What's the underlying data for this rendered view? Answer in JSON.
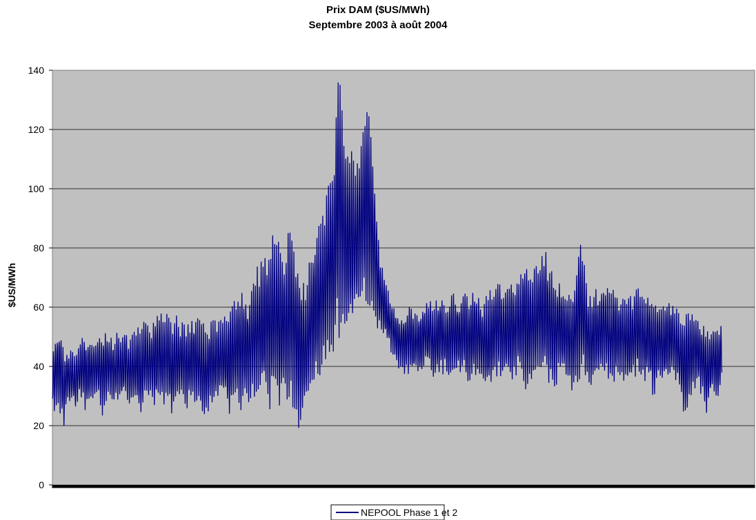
{
  "chart_data": {
    "type": "line",
    "title": "Prix DAM ($US/MWh)",
    "subtitle": "Septembre 2003 à août 2004",
    "xlabel": "",
    "ylabel": "$US/MWh",
    "ylim": [
      0,
      140
    ],
    "yticks": [
      "0",
      "20",
      "40",
      "60",
      "80",
      "100",
      "120",
      "140"
    ],
    "grid": true,
    "legend": "bottom-center",
    "plot_background": "#c0c0c0",
    "series": [
      {
        "name": "NEPOOL Phase 1 et 2",
        "color": "#000080",
        "x_days": [
          0,
          2,
          4,
          6,
          8,
          10,
          12,
          14,
          16,
          18,
          20,
          22,
          24,
          26,
          28,
          30,
          32,
          34,
          36,
          38,
          40,
          42,
          44,
          46,
          48,
          50,
          52,
          54,
          56,
          58,
          60,
          62,
          64,
          66,
          68,
          70,
          72,
          74,
          76,
          78,
          80,
          82,
          84,
          86,
          88,
          90,
          92,
          94,
          96,
          98,
          100,
          102,
          104,
          106,
          108,
          110,
          112,
          114,
          116,
          118,
          120,
          122,
          124,
          126,
          128,
          130,
          132,
          134,
          136,
          138,
          140,
          142,
          144,
          146,
          148,
          150,
          152,
          154,
          156,
          158,
          160,
          162,
          164,
          166,
          168,
          170,
          172,
          174,
          176,
          178,
          180,
          182,
          184,
          186,
          188,
          190,
          192,
          194,
          196,
          198,
          200,
          202,
          204,
          206,
          208,
          210,
          212,
          214,
          216,
          218,
          220,
          222,
          224,
          226,
          228,
          230,
          232,
          234,
          236,
          238,
          240,
          242,
          244,
          246,
          248,
          250,
          252,
          254,
          256,
          258,
          260,
          262,
          264,
          266,
          268,
          270,
          272,
          274,
          276,
          278,
          280,
          282,
          284,
          286,
          288,
          290,
          292,
          294,
          296,
          298,
          300,
          302,
          304,
          306,
          308,
          310,
          312,
          314,
          316,
          318,
          320,
          322,
          324,
          326,
          328,
          330,
          332,
          334,
          336,
          338,
          340,
          342,
          344,
          346,
          348,
          350,
          352,
          354,
          356,
          358,
          360,
          362,
          364
        ],
        "daily_low": [
          24,
          26,
          25,
          20,
          28,
          27,
          25,
          30,
          27,
          26,
          28,
          29,
          30,
          24,
          28,
          31,
          27,
          29,
          28,
          30,
          26,
          29,
          27,
          23,
          30,
          28,
          29,
          27,
          30,
          26,
          28,
          22,
          27,
          30,
          28,
          25,
          29,
          27,
          28,
          20,
          25,
          27,
          26,
          29,
          30,
          28,
          24,
          27,
          25,
          26,
          30,
          27,
          31,
          29,
          28,
          30,
          26,
          27,
          30,
          25,
          28,
          26,
          29,
          24,
          18,
          22,
          26,
          30,
          33,
          35,
          38,
          42,
          44,
          45,
          47,
          48,
          50,
          52,
          55,
          56,
          60,
          63,
          60,
          58,
          55,
          52,
          50,
          48,
          45,
          42,
          40,
          38,
          37,
          38,
          36,
          39,
          37,
          40,
          38,
          36,
          37,
          38,
          39,
          35,
          37,
          38,
          36,
          37,
          34,
          36,
          37,
          38,
          35,
          33,
          34,
          36,
          37,
          35,
          36,
          34,
          36,
          38,
          35,
          32,
          34,
          36,
          38,
          37,
          35,
          34,
          32,
          35,
          36,
          37,
          34,
          32,
          35,
          36,
          37,
          35,
          33,
          36,
          37,
          36,
          38,
          35,
          34,
          36,
          37,
          35,
          33,
          36,
          37,
          35,
          34,
          36,
          30,
          33,
          35,
          34,
          36,
          37,
          35,
          30,
          25,
          22,
          28,
          32,
          34,
          30,
          21,
          27,
          30,
          28,
          36
        ],
        "daily_high": [
          46,
          50,
          55,
          44,
          47,
          46,
          45,
          48,
          52,
          50,
          49,
          47,
          50,
          51,
          52,
          49,
          50,
          52,
          51,
          53,
          50,
          51,
          54,
          52,
          56,
          53,
          55,
          58,
          57,
          60,
          58,
          56,
          58,
          55,
          57,
          54,
          56,
          58,
          57,
          55,
          52,
          54,
          56,
          57,
          55,
          58,
          60,
          62,
          67,
          65,
          64,
          63,
          68,
          72,
          76,
          78,
          82,
          85,
          80,
          86,
          78,
          84,
          89,
          80,
          75,
          70,
          65,
          78,
          82,
          86,
          90,
          98,
          104,
          106,
          140,
          138,
          120,
          110,
          112,
          108,
          116,
          124,
          129,
          118,
          100,
          80,
          72,
          66,
          62,
          60,
          58,
          57,
          60,
          62,
          59,
          58,
          60,
          61,
          63,
          60,
          62,
          64,
          60,
          62,
          66,
          62,
          64,
          68,
          63,
          65,
          66,
          64,
          62,
          63,
          66,
          68,
          72,
          66,
          67,
          70,
          68,
          70,
          74,
          81,
          72,
          74,
          76,
          78,
          84,
          75,
          72,
          70,
          68,
          66,
          65,
          68,
          70,
          82,
          80,
          66,
          64,
          66,
          65,
          68,
          66,
          64,
          67,
          65,
          63,
          64,
          66,
          64,
          68,
          66,
          64,
          65,
          62,
          63,
          60,
          61,
          62,
          64,
          60,
          58,
          56,
          60,
          61,
          58,
          56,
          54,
          56,
          54,
          55,
          53,
          54
        ]
      }
    ]
  }
}
